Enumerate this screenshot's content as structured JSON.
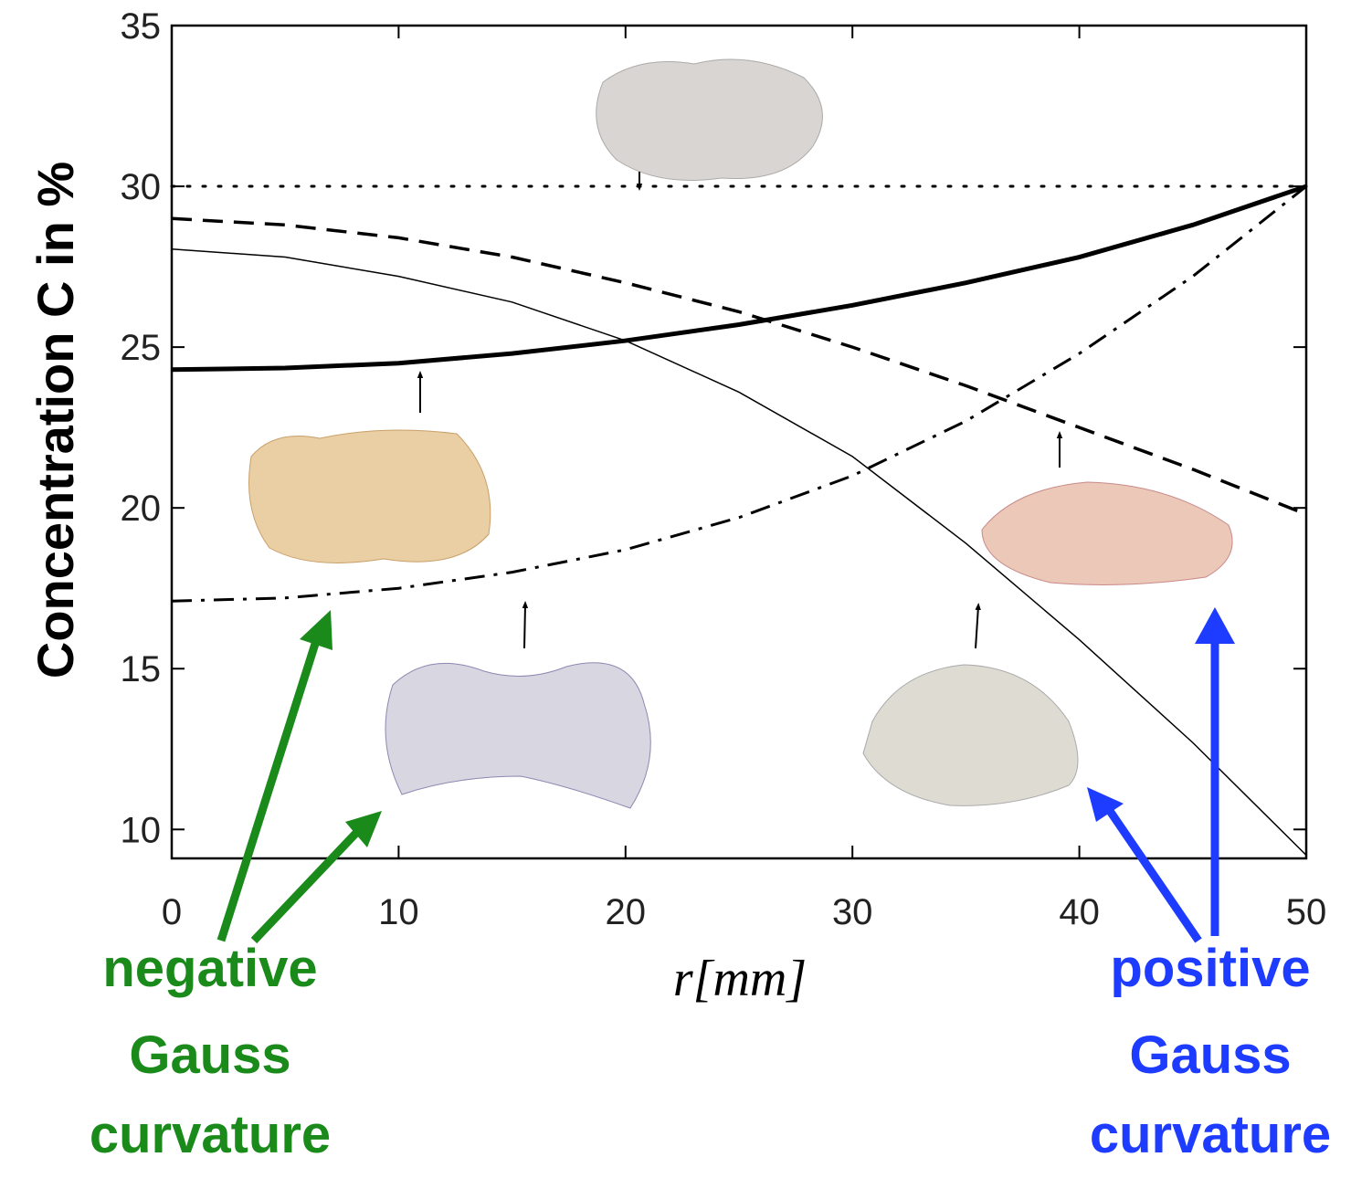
{
  "chart_data": {
    "type": "line",
    "ylabel": "Concentration C in %",
    "xlabel": "r[mm]",
    "x": [
      0,
      5,
      10,
      15,
      20,
      25,
      30,
      35,
      40,
      45,
      50
    ],
    "series": [
      {
        "color": "#000000",
        "style": "dotted",
        "width": 3,
        "values": [
          30,
          30,
          30,
          30,
          30,
          30,
          30,
          30,
          30,
          30,
          30
        ]
      },
      {
        "color": "#000000",
        "style": "dashed",
        "width": 3.5,
        "values": [
          29.0,
          28.8,
          28.4,
          27.8,
          27.0,
          26.1,
          25.0,
          23.8,
          22.5,
          21.2,
          19.8
        ]
      },
      {
        "color": "#000000",
        "style": "solid",
        "width": 1.5,
        "values": [
          28.05,
          27.8,
          27.2,
          26.4,
          25.2,
          23.6,
          21.6,
          18.9,
          15.9,
          12.7,
          9.2
        ]
      },
      {
        "color": "#000000",
        "style": "solid",
        "width": 5,
        "values": [
          24.3,
          24.35,
          24.5,
          24.8,
          25.2,
          25.7,
          26.3,
          27.0,
          27.8,
          28.8,
          30.0
        ]
      },
      {
        "color": "#000000",
        "style": "dashdot",
        "width": 3,
        "values": [
          17.1,
          17.2,
          17.5,
          18.0,
          18.7,
          19.7,
          21.0,
          22.7,
          24.8,
          27.2,
          30.0
        ]
      }
    ],
    "xlim": [
      0,
      50
    ],
    "ylim": [
      9.1,
      35
    ],
    "xticks": [
      0,
      10,
      20,
      30,
      40,
      50
    ],
    "yticks": [
      10,
      15,
      20,
      25,
      30,
      35
    ],
    "annotations": [
      {
        "lines": [
          "negative",
          "Gauss",
          "curvature"
        ],
        "color": "#1a8a1a"
      },
      {
        "lines": [
          "positive",
          "Gauss",
          "curvature"
        ],
        "color": "#1e3cff"
      }
    ]
  }
}
